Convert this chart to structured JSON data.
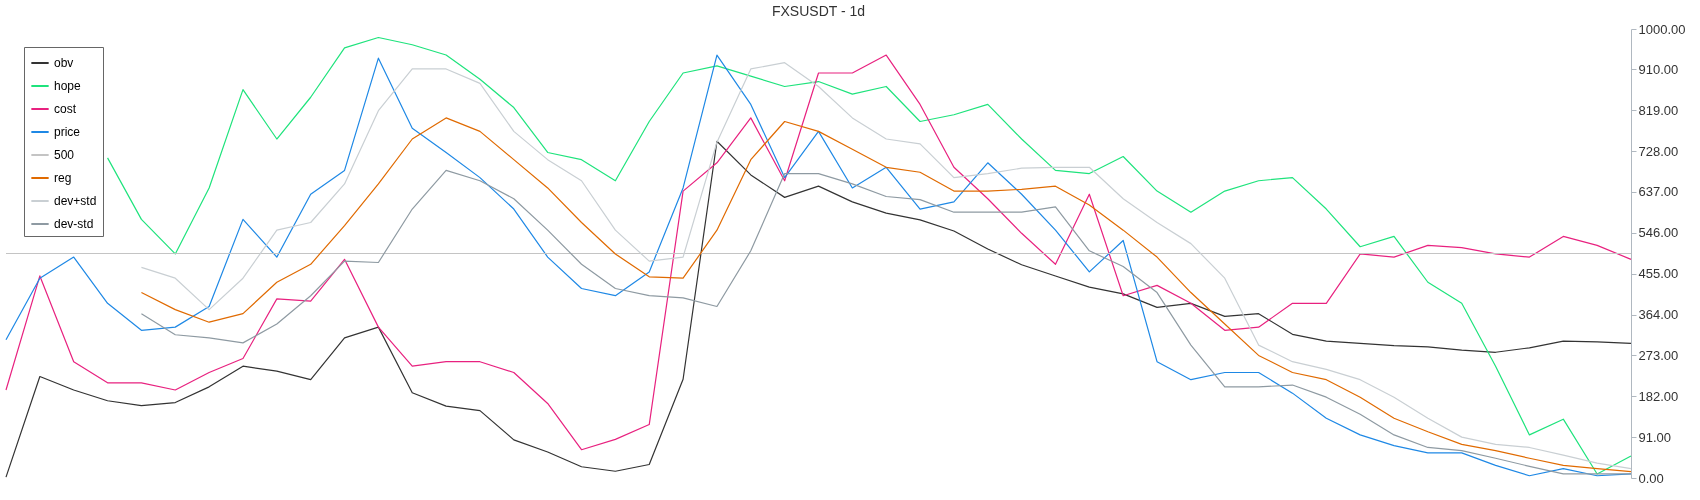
{
  "chart_data": {
    "type": "line",
    "title": "FXSUSDT - 1d",
    "categories": [
      null,
      null,
      null,
      null,
      null,
      null,
      null,
      null,
      null,
      null,
      null,
      null,
      null,
      null,
      null,
      null,
      null,
      null,
      null,
      null,
      null,
      null,
      null,
      null,
      null,
      null,
      null,
      null,
      null,
      null,
      null,
      null,
      null,
      null,
      null,
      null,
      null,
      null,
      null,
      null,
      null,
      null,
      null,
      null,
      null,
      null,
      null,
      null,
      null
    ],
    "series": [
      {
        "name": "obv",
        "color": "#333333",
        "values": [
          2,
          226,
          196,
          172,
          161,
          168,
          203,
          249,
          238,
          219,
          312,
          336,
          190,
          160,
          150,
          85,
          58,
          25,
          15,
          30,
          220,
          750,
          675,
          625,
          650,
          615,
          590,
          575,
          550,
          510,
          475,
          450,
          425,
          410,
          380,
          389,
          360,
          366,
          320,
          305,
          300,
          295,
          292,
          285,
          280,
          290,
          305,
          303,
          300
        ]
      },
      {
        "name": "hope",
        "color": "#1ee37c",
        "values": [
          null,
          null,
          null,
          713,
          576,
          499,
          646,
          865,
          755,
          848,
          958,
          981,
          965,
          942,
          888,
          825,
          725,
          709,
          662,
          794,
          902,
          918,
          895,
          872,
          883,
          855,
          872,
          794,
          809,
          832,
          755,
          685,
          678,
          716,
          639,
          592,
          639,
          662,
          669,
          599,
          515,
          538,
          436,
          389,
          249,
          96,
          131,
          9,
          49
        ]
      },
      {
        "name": "cost",
        "color": "#e8217f",
        "values": [
          196,
          450,
          259,
          212,
          212,
          196,
          235,
          266,
          399,
          394,
          487,
          336,
          249,
          259,
          259,
          235,
          166,
          63,
          86,
          119,
          639,
          702,
          802,
          662,
          902,
          902,
          942,
          832,
          692,
          622,
          545,
          476,
          632,
          406,
          429,
          389,
          329,
          336,
          389,
          389,
          499,
          492,
          518,
          513,
          499,
          492,
          538,
          518,
          487
        ]
      },
      {
        "name": "price",
        "color": "#1e88e5",
        "values": [
          308,
          445,
          492,
          389,
          329,
          336,
          382,
          576,
          492,
          632,
          685,
          935,
          779,
          725,
          669,
          599,
          492,
          422,
          406,
          459,
          646,
          942,
          832,
          669,
          772,
          646,
          692,
          599,
          615,
          702,
          632,
          552,
          459,
          529,
          259,
          219,
          235,
          235,
          189,
          133,
          96,
          72,
          56,
          56,
          28,
          5,
          21,
          5,
          9
        ]
      },
      {
        "name": "500",
        "color": "#c4c4c4",
        "values": [
          500,
          500,
          500,
          500,
          500,
          500,
          500,
          500,
          500,
          500,
          500,
          500,
          500,
          500,
          500,
          500,
          500,
          500,
          500,
          500,
          500,
          500,
          500,
          500,
          500,
          500,
          500,
          500,
          500,
          500,
          500,
          500,
          500,
          500,
          500,
          500,
          500,
          500,
          500,
          500,
          500,
          500,
          500,
          500,
          500,
          500,
          500,
          500,
          500
        ]
      },
      {
        "name": "reg",
        "color": "#e06a00",
        "values": [
          null,
          null,
          null,
          null,
          413,
          375,
          347,
          366,
          436,
          476,
          562,
          655,
          755,
          802,
          772,
          709,
          646,
          569,
          499,
          448,
          445,
          552,
          709,
          794,
          772,
          732,
          692,
          681,
          639,
          639,
          643,
          650,
          608,
          552,
          492,
          413,
          343,
          273,
          235,
          219,
          180,
          133,
          103,
          75,
          61,
          44,
          28,
          21,
          14
        ]
      },
      {
        "name": "dev+std",
        "color": "#c9cfd3",
        "values": [
          null,
          null,
          null,
          null,
          469,
          445,
          375,
          445,
          552,
          569,
          655,
          818,
          911,
          911,
          879,
          772,
          709,
          662,
          552,
          483,
          492,
          748,
          911,
          925,
          872,
          802,
          755,
          744,
          669,
          678,
          690,
          692,
          692,
          622,
          569,
          522,
          445,
          296,
          259,
          242,
          219,
          180,
          133,
          91,
          75,
          68,
          51,
          33,
          21
        ]
      },
      {
        "name": "dev-std",
        "color": "#8e9aa2",
        "values": [
          null,
          null,
          null,
          null,
          366,
          319,
          312,
          301,
          343,
          406,
          483,
          480,
          599,
          685,
          662,
          622,
          552,
          476,
          422,
          406,
          401,
          382,
          506,
          678,
          678,
          655,
          627,
          620,
          592,
          592,
          592,
          604,
          506,
          471,
          413,
          296,
          203,
          203,
          207,
          180,
          142,
          96,
          68,
          61,
          44,
          26,
          9,
          9,
          9
        ]
      }
    ],
    "ylim": [
      0,
      1000
    ],
    "yticks": [
      {
        "value": 0,
        "label": "0.00"
      },
      {
        "value": 91,
        "label": "91.00"
      },
      {
        "value": 182,
        "label": "182.00"
      },
      {
        "value": 273,
        "label": "273.00"
      },
      {
        "value": 364,
        "label": "364.00"
      },
      {
        "value": 455,
        "label": "455.00"
      },
      {
        "value": 546,
        "label": "546.00"
      },
      {
        "value": 637,
        "label": "637.00"
      },
      {
        "value": 728,
        "label": "728.00"
      },
      {
        "value": 819,
        "label": "819.00"
      },
      {
        "value": 910,
        "label": "910.00"
      },
      {
        "value": 1000,
        "label": "1000.00"
      }
    ],
    "grid": false,
    "legend": "top left",
    "tick_labels": "y",
    "marker": "none",
    "line_style": "solid"
  }
}
